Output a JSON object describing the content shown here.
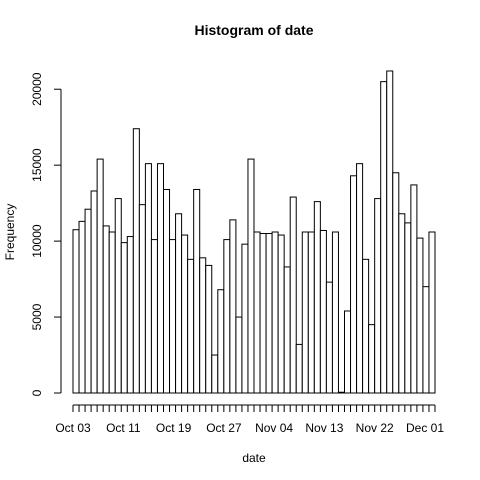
{
  "chart_data": {
    "type": "bar",
    "title": "Histogram of date",
    "xlabel": "date",
    "ylabel": "Frequency",
    "ylim": [
      0,
      21200
    ],
    "y_ticks": [
      0,
      5000,
      10000,
      15000,
      20000
    ],
    "x_tick_labels": [
      "Oct 03",
      "Oct 11",
      "Oct 19",
      "Oct 27",
      "Nov 04",
      "Nov 13",
      "Nov 22",
      "Dec 01"
    ],
    "grid": false,
    "legend": "none",
    "values": [
      10750,
      11300,
      12100,
      13300,
      15400,
      11000,
      10600,
      12800,
      9900,
      10300,
      17400,
      12400,
      15100,
      10100,
      15100,
      13400,
      10100,
      11800,
      10400,
      8800,
      13400,
      8900,
      8400,
      2500,
      6800,
      10100,
      11400,
      5000,
      9800,
      15400,
      10600,
      10500,
      10500,
      10600,
      10400,
      8300,
      12900,
      3200,
      10600,
      10600,
      12600,
      10700,
      7300,
      10600,
      50,
      5400,
      14300,
      15100,
      8800,
      4500,
      12800,
      20500,
      21200,
      14500,
      11800,
      11200,
      13700,
      10200,
      7000,
      10600
    ]
  }
}
